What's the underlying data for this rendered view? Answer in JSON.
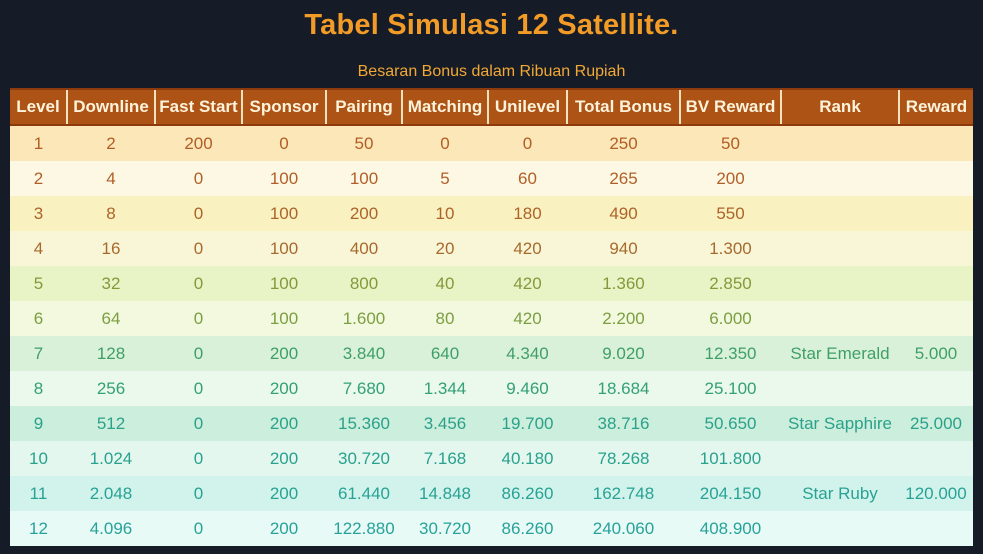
{
  "page": {
    "title": "Tabel Simulasi 12 Satellite.",
    "subtitle": "Besaran Bonus dalam Ribuan Rupiah"
  },
  "colors": {
    "page_background": "#151c28",
    "title_text": "#f29b27",
    "subtitle_text": "#f2a833",
    "header_background": "#ad5316",
    "header_text": "#fdf3da",
    "header_divider": "#f0e2bd",
    "header_border": "#8c3a0e"
  },
  "table": {
    "headers": [
      "Level",
      "Downline",
      "Fast Start",
      "Sponsor",
      "Pairing",
      "Matching",
      "Unilevel",
      "Total Bonus",
      "BV Reward",
      "Rank",
      "Reward"
    ],
    "rows": [
      {
        "bg": "#fbe7b7",
        "fg": "#b25d25",
        "cells": [
          "1",
          "2",
          "200",
          "0",
          "50",
          "0",
          "0",
          "250",
          "50",
          "",
          ""
        ]
      },
      {
        "bg": "#fdf8e4",
        "fg": "#b15f28",
        "cells": [
          "2",
          "4",
          "0",
          "100",
          "100",
          "5",
          "60",
          "265",
          "200",
          "",
          ""
        ]
      },
      {
        "bg": "#faf1c0",
        "fg": "#ac6428",
        "cells": [
          "3",
          "8",
          "0",
          "100",
          "200",
          "10",
          "180",
          "490",
          "550",
          "",
          ""
        ]
      },
      {
        "bg": "#f9f6d8",
        "fg": "#a76a2d",
        "cells": [
          "4",
          "16",
          "0",
          "100",
          "400",
          "20",
          "420",
          "940",
          "1.300",
          "",
          ""
        ]
      },
      {
        "bg": "#e9f4c6",
        "fg": "#85993b",
        "cells": [
          "5",
          "32",
          "0",
          "100",
          "800",
          "40",
          "420",
          "1.360",
          "2.850",
          "",
          ""
        ]
      },
      {
        "bg": "#f2f9df",
        "fg": "#7c9e41",
        "cells": [
          "6",
          "64",
          "0",
          "100",
          "1.600",
          "80",
          "420",
          "2.200",
          "6.000",
          "",
          ""
        ]
      },
      {
        "bg": "#daf1d9",
        "fg": "#3f9f68",
        "cells": [
          "7",
          "128",
          "0",
          "200",
          "3.840",
          "640",
          "4.340",
          "9.020",
          "12.350",
          "Star Emerald",
          "5.000"
        ]
      },
      {
        "bg": "#ebf8ec",
        "fg": "#33a077",
        "cells": [
          "8",
          "256",
          "0",
          "200",
          "7.680",
          "1.344",
          "9.460",
          "18.684",
          "25.100",
          "",
          ""
        ]
      },
      {
        "bg": "#cceedd",
        "fg": "#2ba189",
        "cells": [
          "9",
          "512",
          "0",
          "200",
          "15.360",
          "3.456",
          "19.700",
          "38.716",
          "50.650",
          "Star Sapphire",
          "25.000"
        ]
      },
      {
        "bg": "#e4f7ee",
        "fg": "#29a18f",
        "cells": [
          "10",
          "1.024",
          "0",
          "200",
          "30.720",
          "7.168",
          "40.180",
          "78.268",
          "101.800",
          "",
          ""
        ]
      },
      {
        "bg": "#d1f3eb",
        "fg": "#28a295",
        "cells": [
          "11",
          "2.048",
          "0",
          "200",
          "61.440",
          "14.848",
          "86.260",
          "162.748",
          "204.150",
          "Star Ruby",
          "120.000"
        ]
      },
      {
        "bg": "#e8faf5",
        "fg": "#27a29a",
        "cells": [
          "12",
          "4.096",
          "0",
          "200",
          "122.880",
          "30.720",
          "86.260",
          "240.060",
          "408.900",
          "",
          ""
        ]
      }
    ]
  }
}
